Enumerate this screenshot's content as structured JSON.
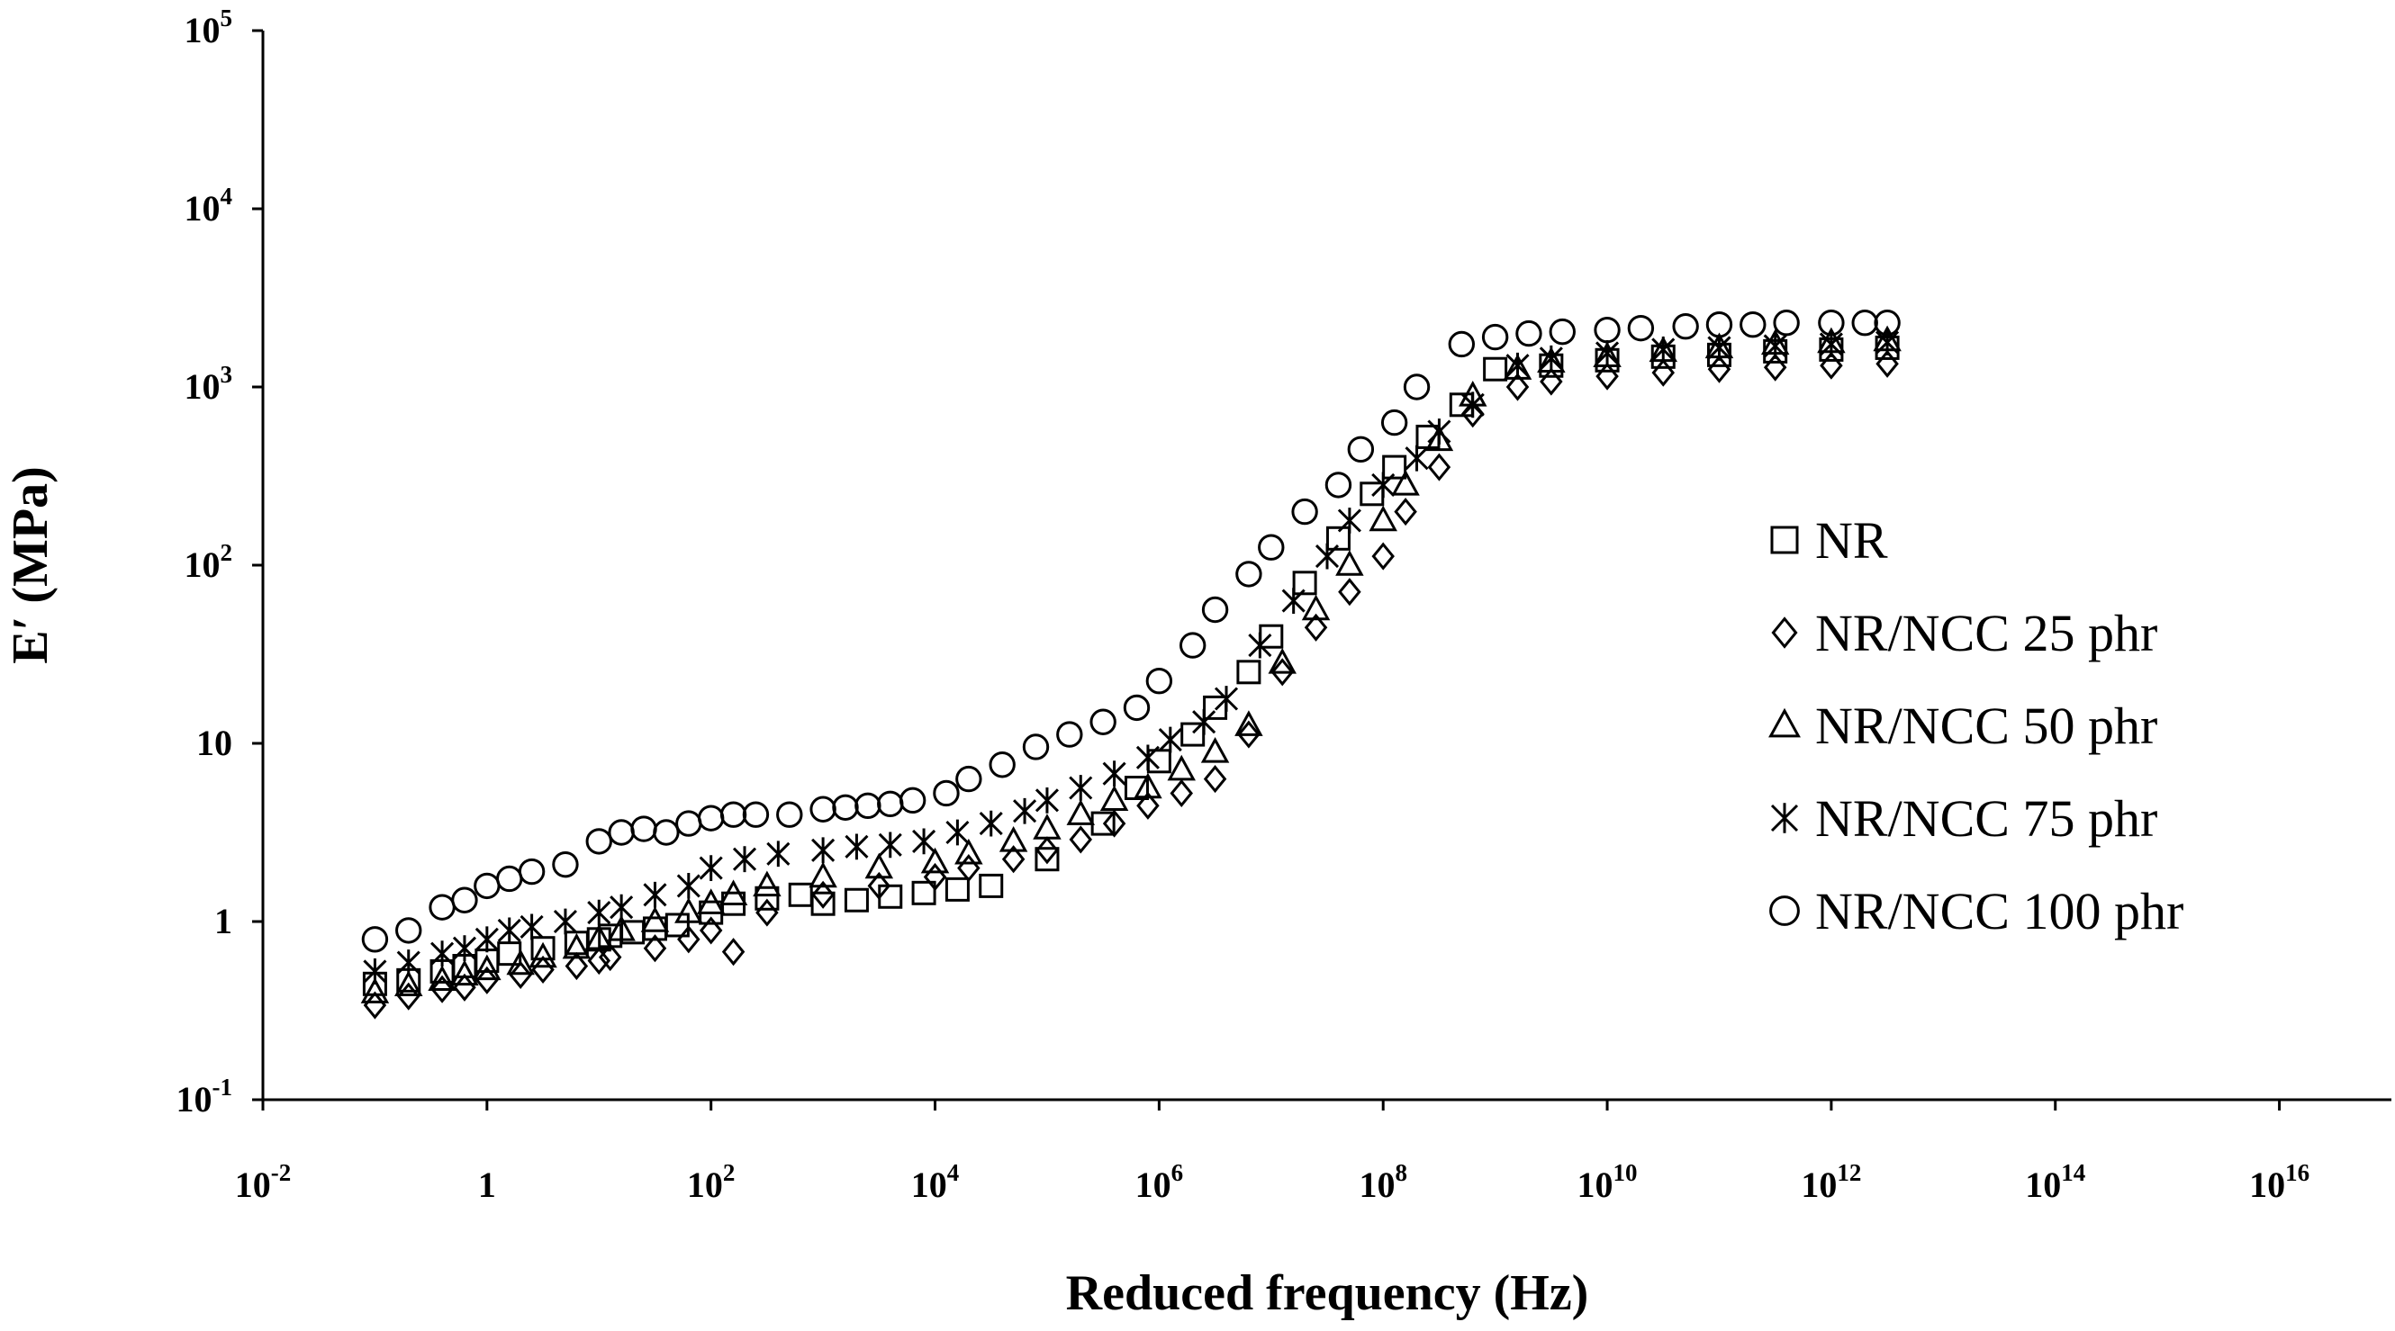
{
  "chart_data": {
    "type": "scatter",
    "title": "",
    "xlabel": "Reduced frequency (Hz)",
    "ylabel": "E′  (MPa)",
    "xscale": "log",
    "yscale": "log",
    "xlim": [
      0.01,
      1e+17
    ],
    "ylim": [
      0.1,
      100000
    ],
    "grid": false,
    "legend_position": "right",
    "x_ticks": [
      {
        "value": 0.01,
        "base": "10",
        "exp": "-2"
      },
      {
        "value": 1,
        "base": "1",
        "exp": ""
      },
      {
        "value": 100,
        "base": "10",
        "exp": "2"
      },
      {
        "value": 10000,
        "base": "10",
        "exp": "4"
      },
      {
        "value": 1000000,
        "base": "10",
        "exp": "6"
      },
      {
        "value": 100000000,
        "base": "10",
        "exp": "8"
      },
      {
        "value": 10000000000,
        "base": "10",
        "exp": "10"
      },
      {
        "value": 1000000000000,
        "base": "10",
        "exp": "12"
      },
      {
        "value": 100000000000000,
        "base": "10",
        "exp": "14"
      },
      {
        "value": 10000000000000000,
        "base": "10",
        "exp": "16"
      }
    ],
    "y_ticks": [
      {
        "value": 0.1,
        "base": "10",
        "exp": "-1"
      },
      {
        "value": 1,
        "base": "1",
        "exp": ""
      },
      {
        "value": 10,
        "base": "10",
        "exp": ""
      },
      {
        "value": 100,
        "base": "10",
        "exp": "2"
      },
      {
        "value": 1000,
        "base": "10",
        "exp": "3"
      },
      {
        "value": 10000,
        "base": "10",
        "exp": "4"
      },
      {
        "value": 100000,
        "base": "10",
        "exp": "5"
      }
    ],
    "series": [
      {
        "name": "NR",
        "marker": "square",
        "log_x": [
          -1.0,
          -0.7,
          -0.4,
          -0.2,
          0.0,
          0.2,
          0.5,
          0.8,
          1.0,
          1.1,
          1.3,
          1.5,
          1.7,
          2.0,
          2.2,
          2.5,
          2.8,
          3.0,
          3.3,
          3.6,
          3.9,
          4.2,
          4.5,
          5.0,
          5.5,
          5.8,
          6.0,
          6.3,
          6.5,
          6.8,
          7.0,
          7.3,
          7.6,
          7.9,
          8.1,
          8.4,
          8.7,
          9.0,
          9.5,
          10.0,
          10.5,
          11.0,
          11.5,
          12.0,
          12.5
        ],
        "log_y": [
          -0.35,
          -0.33,
          -0.28,
          -0.25,
          -0.22,
          -0.18,
          -0.15,
          -0.12,
          -0.1,
          -0.08,
          -0.06,
          -0.04,
          -0.02,
          0.05,
          0.1,
          0.13,
          0.15,
          0.1,
          0.12,
          0.14,
          0.16,
          0.18,
          0.2,
          0.35,
          0.55,
          0.75,
          0.9,
          1.05,
          1.2,
          1.4,
          1.6,
          1.9,
          2.15,
          2.4,
          2.55,
          2.72,
          2.9,
          3.1,
          3.12,
          3.15,
          3.17,
          3.18,
          3.2,
          3.21,
          3.22
        ]
      },
      {
        "name": "NR/NCC 25 phr",
        "marker": "diamond",
        "log_x": [
          -1.0,
          -0.7,
          -0.4,
          -0.2,
          0.0,
          0.3,
          0.5,
          0.8,
          1.0,
          1.1,
          1.5,
          1.8,
          2.0,
          2.2,
          2.5,
          3.0,
          3.5,
          4.0,
          4.3,
          4.7,
          5.0,
          5.3,
          5.6,
          5.9,
          6.2,
          6.5,
          6.8,
          7.1,
          7.4,
          7.7,
          8.0,
          8.2,
          8.5,
          8.8,
          9.2,
          9.5,
          10.0,
          10.5,
          11.0,
          11.5,
          12.0,
          12.5
        ],
        "log_y": [
          -0.47,
          -0.42,
          -0.38,
          -0.37,
          -0.33,
          -0.3,
          -0.27,
          -0.25,
          -0.22,
          -0.2,
          -0.15,
          -0.1,
          -0.05,
          -0.17,
          0.05,
          0.15,
          0.2,
          0.25,
          0.3,
          0.35,
          0.4,
          0.46,
          0.55,
          0.65,
          0.72,
          0.8,
          1.05,
          1.4,
          1.65,
          1.85,
          2.05,
          2.3,
          2.55,
          2.85,
          3.0,
          3.03,
          3.06,
          3.08,
          3.1,
          3.11,
          3.12,
          3.13
        ]
      },
      {
        "name": "NR/NCC 50 phr",
        "marker": "triangle",
        "log_x": [
          -1.0,
          -0.7,
          -0.4,
          -0.2,
          0.0,
          0.3,
          0.5,
          0.8,
          1.0,
          1.2,
          1.5,
          1.8,
          2.0,
          2.2,
          2.5,
          3.0,
          3.5,
          4.0,
          4.3,
          4.7,
          5.0,
          5.3,
          5.6,
          5.9,
          6.2,
          6.5,
          6.8,
          7.1,
          7.4,
          7.7,
          8.0,
          8.2,
          8.5,
          8.8,
          9.2,
          9.5,
          10.0,
          10.5,
          11.0,
          11.5,
          12.0,
          12.5
        ],
        "log_y": [
          -0.4,
          -0.36,
          -0.33,
          -0.3,
          -0.27,
          -0.24,
          -0.2,
          -0.15,
          -0.1,
          -0.05,
          0.0,
          0.05,
          0.1,
          0.15,
          0.2,
          0.25,
          0.3,
          0.33,
          0.38,
          0.45,
          0.52,
          0.6,
          0.68,
          0.75,
          0.85,
          0.95,
          1.1,
          1.45,
          1.75,
          2.0,
          2.25,
          2.45,
          2.7,
          2.95,
          3.1,
          3.14,
          3.17,
          3.2,
          3.22,
          3.24,
          3.25,
          3.26
        ]
      },
      {
        "name": "NR/NCC 75 phr",
        "marker": "star",
        "log_x": [
          -1.0,
          -0.7,
          -0.4,
          -0.2,
          0.0,
          0.2,
          0.4,
          0.7,
          1.0,
          1.2,
          1.5,
          1.8,
          2.0,
          2.3,
          2.6,
          3.0,
          3.3,
          3.6,
          3.9,
          4.2,
          4.5,
          4.8,
          5.0,
          5.3,
          5.6,
          5.9,
          6.1,
          6.4,
          6.6,
          6.9,
          7.2,
          7.5,
          7.7,
          8.0,
          8.3,
          8.5,
          8.8,
          9.2,
          9.5,
          10.0,
          10.5,
          11.0,
          11.5,
          12.0,
          12.5
        ],
        "log_y": [
          -0.28,
          -0.23,
          -0.18,
          -0.15,
          -0.1,
          -0.05,
          -0.03,
          0.0,
          0.05,
          0.08,
          0.15,
          0.2,
          0.3,
          0.35,
          0.38,
          0.4,
          0.42,
          0.43,
          0.45,
          0.5,
          0.55,
          0.62,
          0.68,
          0.75,
          0.83,
          0.92,
          1.02,
          1.12,
          1.25,
          1.55,
          1.8,
          2.05,
          2.25,
          2.45,
          2.6,
          2.75,
          2.9,
          3.12,
          3.16,
          3.19,
          3.21,
          3.22,
          3.23,
          3.24,
          3.25
        ]
      },
      {
        "name": "NR/NCC 100 phr",
        "marker": "circle",
        "log_x": [
          -1.0,
          -0.7,
          -0.4,
          -0.2,
          0.0,
          0.2,
          0.4,
          0.7,
          1.0,
          1.2,
          1.4,
          1.6,
          1.8,
          2.0,
          2.2,
          2.4,
          2.7,
          3.0,
          3.2,
          3.4,
          3.6,
          3.8,
          4.1,
          4.3,
          4.6,
          4.9,
          5.2,
          5.5,
          5.8,
          6.0,
          6.3,
          6.5,
          6.8,
          7.0,
          7.3,
          7.6,
          7.8,
          8.1,
          8.3,
          8.7,
          9.0,
          9.3,
          9.6,
          10.0,
          10.3,
          10.7,
          11.0,
          11.3,
          11.6,
          12.0,
          12.3,
          12.5
        ],
        "log_y": [
          -0.1,
          -0.05,
          0.08,
          0.12,
          0.2,
          0.24,
          0.28,
          0.32,
          0.45,
          0.5,
          0.52,
          0.5,
          0.55,
          0.58,
          0.6,
          0.6,
          0.6,
          0.63,
          0.64,
          0.65,
          0.66,
          0.68,
          0.72,
          0.8,
          0.88,
          0.98,
          1.05,
          1.12,
          1.2,
          1.35,
          1.55,
          1.75,
          1.95,
          2.1,
          2.3,
          2.45,
          2.65,
          2.8,
          3.0,
          3.24,
          3.28,
          3.3,
          3.31,
          3.32,
          3.33,
          3.34,
          3.35,
          3.35,
          3.36,
          3.36,
          3.36,
          3.36
        ]
      }
    ]
  }
}
